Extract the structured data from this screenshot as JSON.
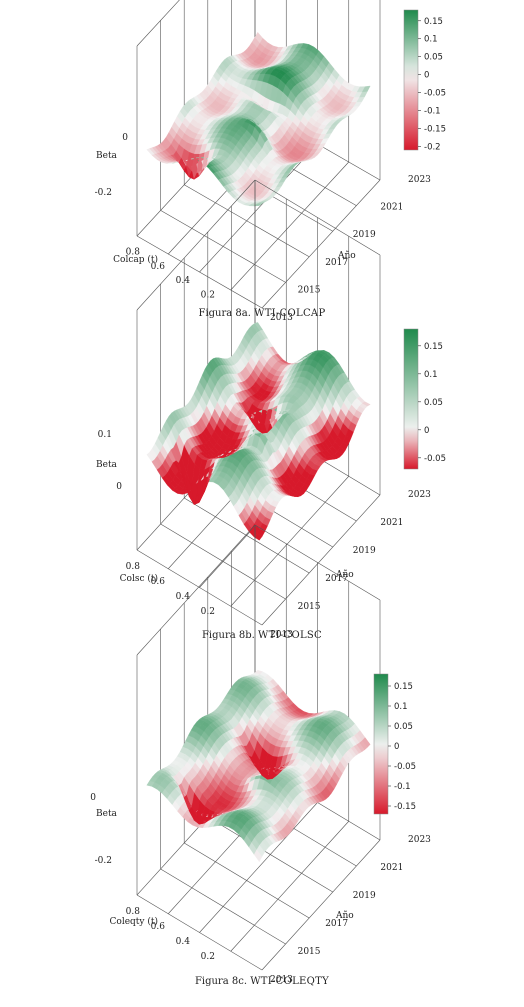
{
  "chart_data": [
    {
      "type": "surface",
      "caption_prefix": "Figura 8a.",
      "caption_code": "WTI-COLCAP",
      "zlabel": "Beta",
      "xlabel": "Colcap (t)",
      "ylabel": "Año",
      "x_ticks": [
        "0.2",
        "0.4",
        "0.6",
        "0.8"
      ],
      "y_ticks": [
        "2013",
        "2015",
        "2017",
        "2019",
        "2021",
        "2023"
      ],
      "z_ticks": [
        "0",
        "-0.2"
      ],
      "colorbar_ticks": [
        "0.15",
        "0.1",
        "0.05",
        "0",
        "-0.05",
        "-0.1",
        "-0.15",
        "-0.2"
      ],
      "colorbar_range": [
        -0.21,
        0.18
      ],
      "colors": {
        "low": "#d7192b",
        "mid": "#f2f2f2",
        "high": "#1f8a4c"
      }
    },
    {
      "type": "surface",
      "caption_prefix": "Figura 8b.",
      "caption_code": "WTI-COLSC",
      "zlabel": "Beta",
      "xlabel": "Colsc (t)",
      "ylabel": "Año",
      "x_ticks": [
        "0.2",
        "0.4",
        "0.6",
        "0.8"
      ],
      "y_ticks": [
        "2013",
        "2015",
        "2017",
        "2019",
        "2021",
        "2023"
      ],
      "z_ticks": [
        "0.1",
        "0"
      ],
      "colorbar_ticks": [
        "0.15",
        "0.1",
        "0.05",
        "0",
        "-0.05"
      ],
      "colorbar_range": [
        -0.07,
        0.18
      ],
      "colors": {
        "low": "#d7192b",
        "mid": "#f2f2f2",
        "high": "#1f8a4c"
      }
    },
    {
      "type": "surface",
      "caption_prefix": "Figura 8c.",
      "caption_code": "WTI-COLEQTY",
      "zlabel": "Beta",
      "xlabel": "Coleqty (t)",
      "ylabel": "Año",
      "x_ticks": [
        "0.2",
        "0.4",
        "0.6",
        "0.8"
      ],
      "y_ticks": [
        "2013",
        "2015",
        "2017",
        "2019",
        "2021",
        "2023"
      ],
      "z_ticks": [
        "0",
        "-0.2"
      ],
      "colorbar_ticks": [
        "0.15",
        "0.1",
        "0.05",
        "0",
        "-0.05",
        "-0.1",
        "-0.15"
      ],
      "colorbar_range": [
        -0.17,
        0.18
      ],
      "colors": {
        "low": "#d7192b",
        "mid": "#f2f2f2",
        "high": "#1f8a4c"
      }
    }
  ]
}
